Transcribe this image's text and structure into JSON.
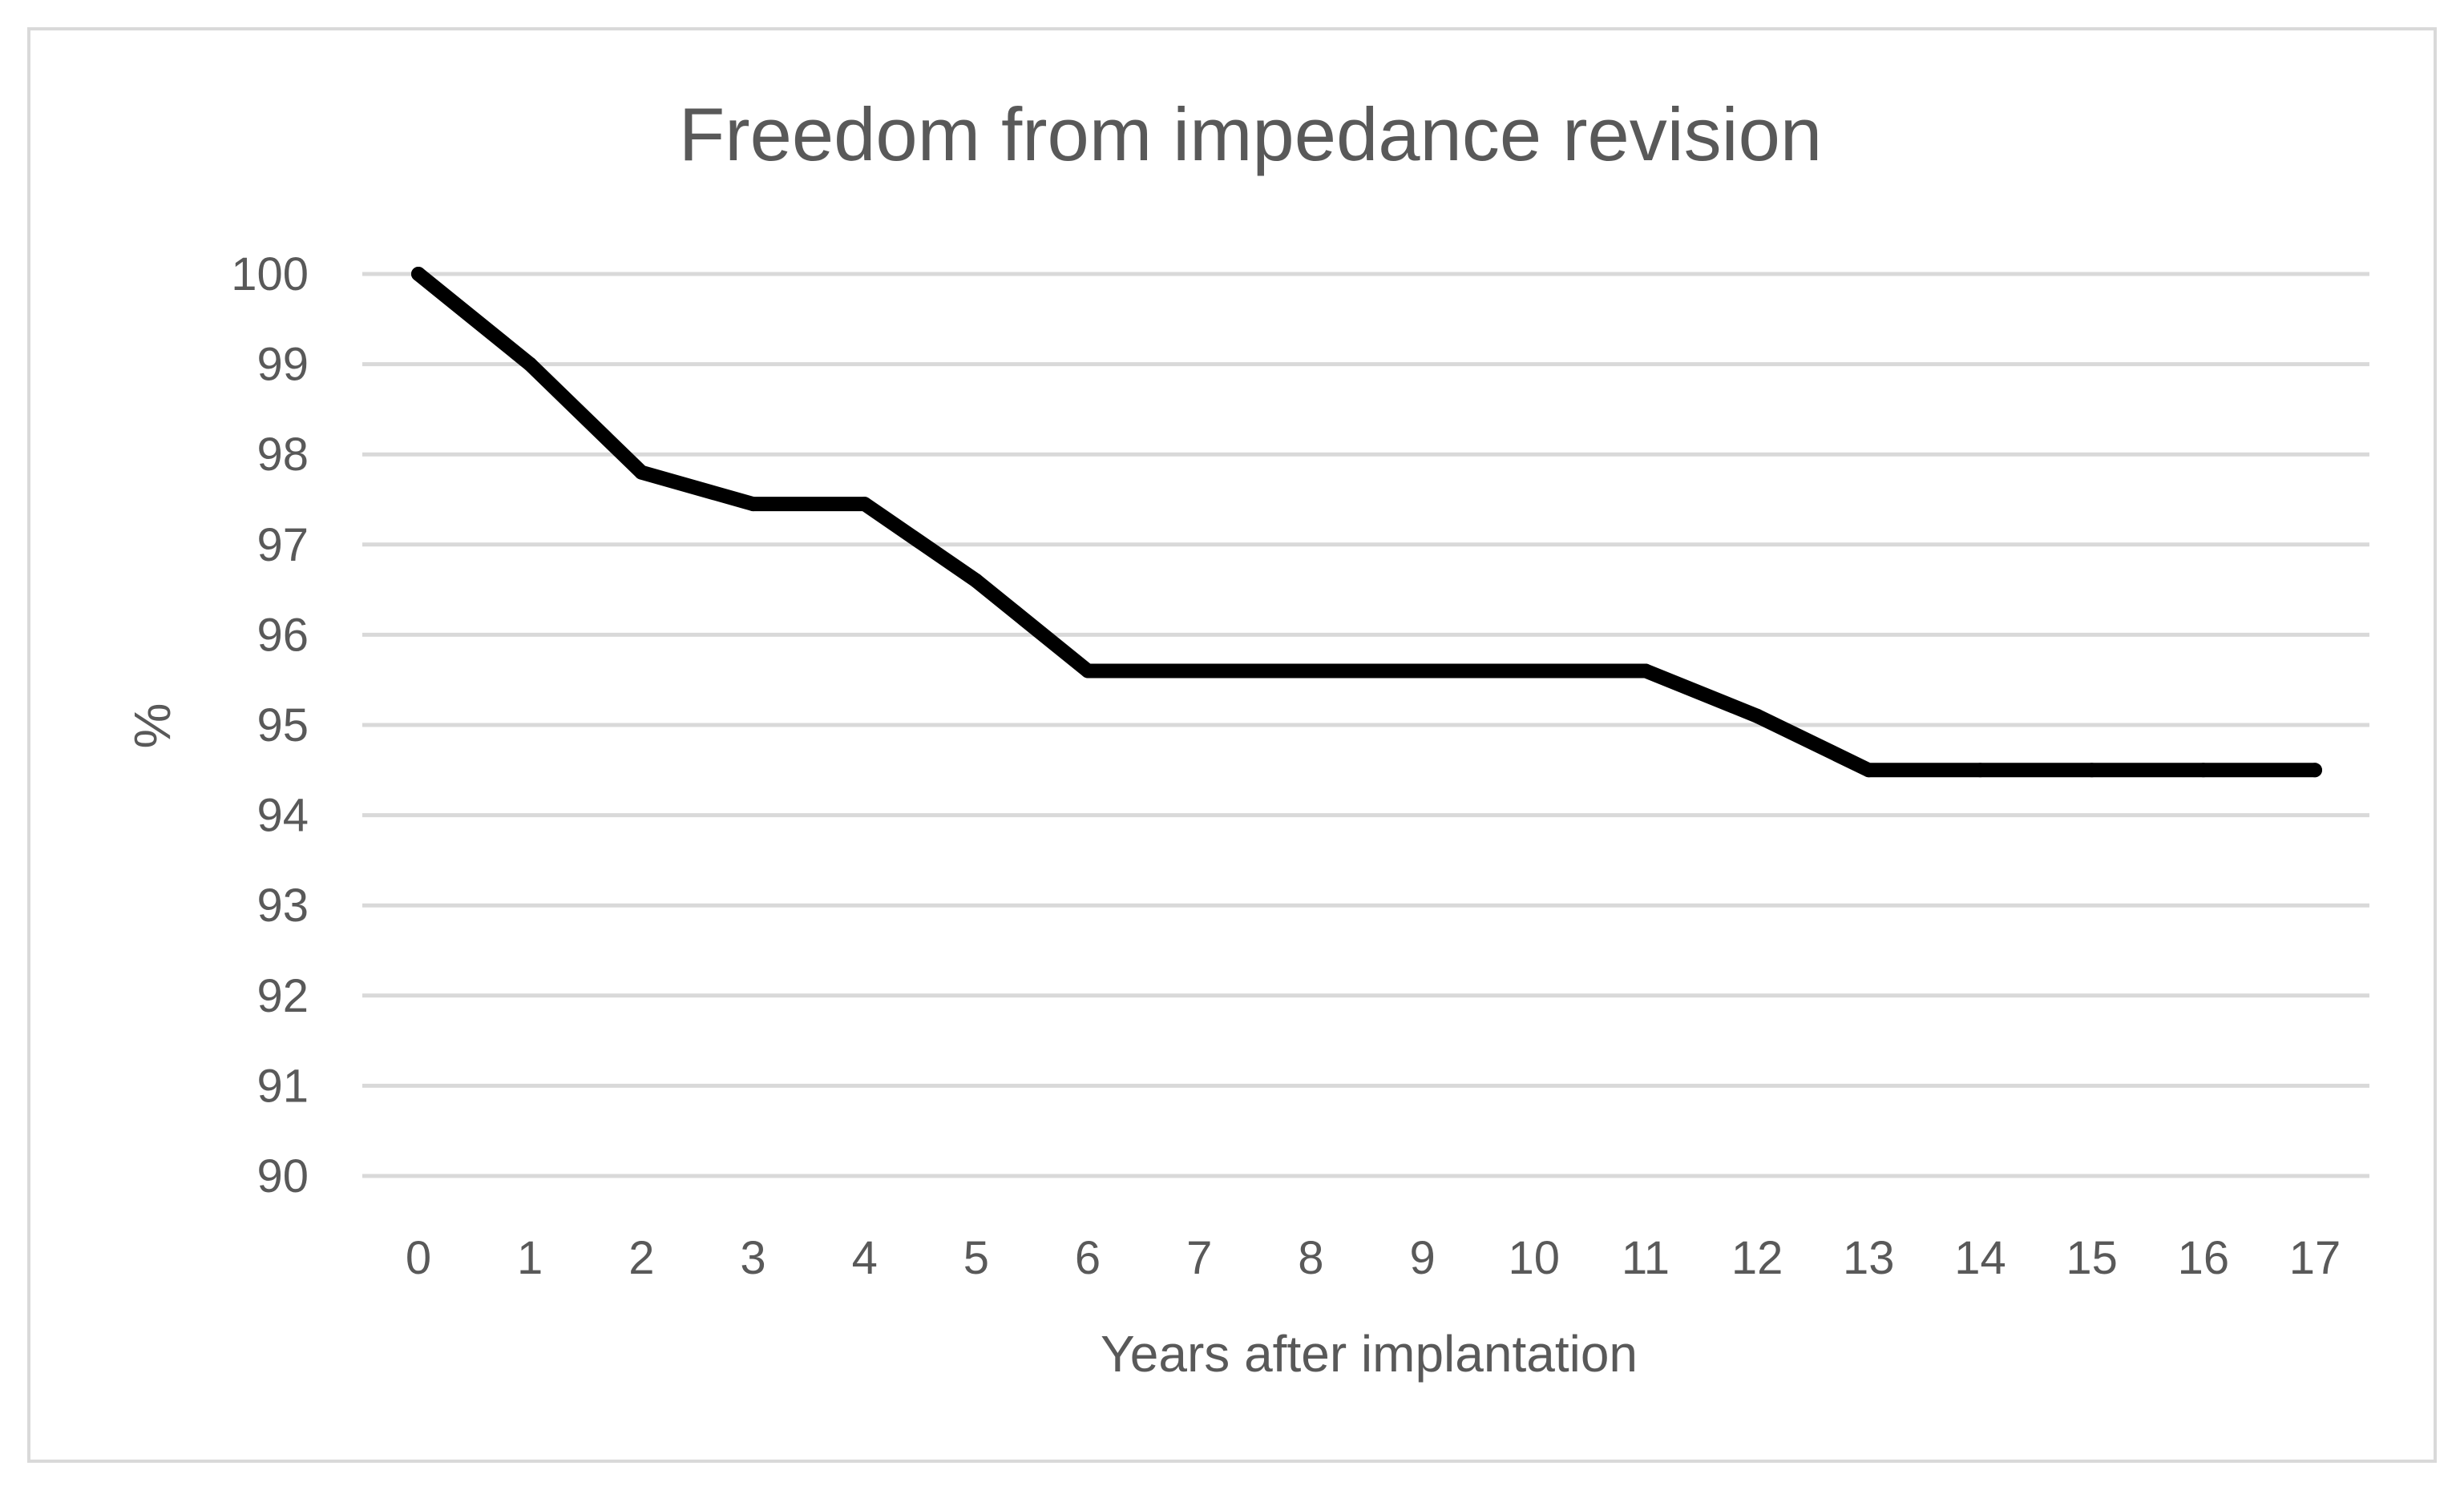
{
  "chart_data": {
    "type": "line",
    "title": "Freedom from impedance revision",
    "xlabel": "Years after implantation",
    "ylabel": "%",
    "x": [
      0,
      1,
      2,
      3,
      4,
      5,
      6,
      7,
      8,
      9,
      10,
      11,
      12,
      13,
      14,
      15,
      16,
      17
    ],
    "series": [
      {
        "values": [
          100,
          99.0,
          97.8,
          97.45,
          97.45,
          96.6,
          95.6,
          95.6,
          95.6,
          95.6,
          95.6,
          95.6,
          95.1,
          94.5,
          94.5,
          94.5,
          94.5,
          94.5
        ]
      }
    ],
    "ylim": [
      90,
      100
    ],
    "yticks": [
      90,
      91,
      92,
      93,
      94,
      95,
      96,
      97,
      98,
      99,
      100
    ],
    "xticks": [
      "0",
      "1",
      "2",
      "3",
      "4",
      "5",
      "6",
      "7",
      "8",
      "9",
      "10",
      "11",
      "12",
      "13",
      "14",
      "15",
      "16",
      "17"
    ],
    "grid": true,
    "legend": "none",
    "colors": {
      "line": "#000000",
      "grid": "#d9d9d9",
      "text": "#595959",
      "border": "#d9d9d9"
    }
  }
}
